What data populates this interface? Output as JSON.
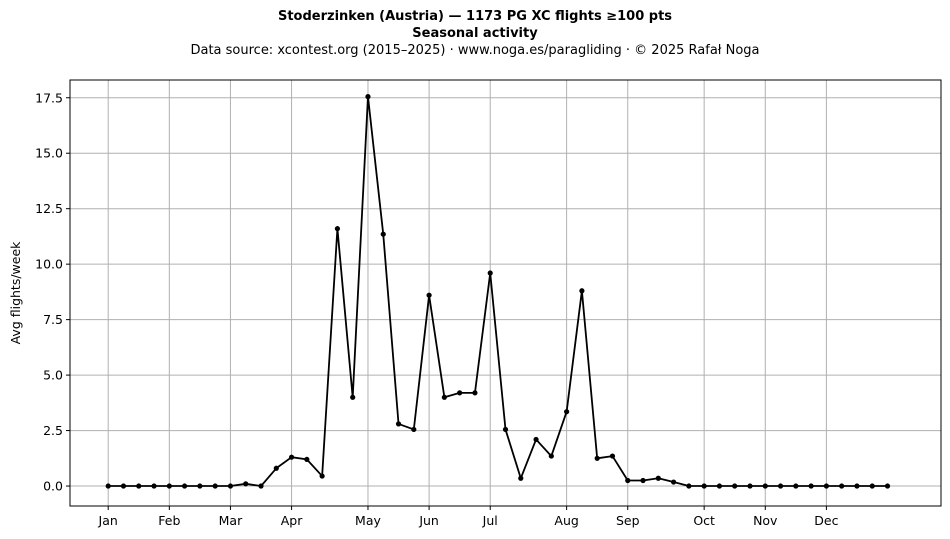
{
  "chart_data": {
    "type": "line",
    "title": "Stoderzinken (Austria)  —  1173 PG XC flights ≥100 pts",
    "subtitle": "Seasonal activity",
    "source": "Data source: xcontest.org (2015–2025)  ·  www.noga.es/paragliding  ·  © 2025 Rafał Noga",
    "xlabel": "",
    "ylabel": "Avg flights/week",
    "ylim": [
      -0.9,
      18.3
    ],
    "xlim": [
      -2.5,
      54.5
    ],
    "grid": true,
    "month_ticks": [
      {
        "label": "Jan",
        "week": 0
      },
      {
        "label": "Feb",
        "week": 4
      },
      {
        "label": "Mar",
        "week": 8
      },
      {
        "label": "Apr",
        "week": 12
      },
      {
        "label": "May",
        "week": 17
      },
      {
        "label": "Jun",
        "week": 21
      },
      {
        "label": "Jul",
        "week": 25
      },
      {
        "label": "Aug",
        "week": 30
      },
      {
        "label": "Sep",
        "week": 34
      },
      {
        "label": "Oct",
        "week": 39
      },
      {
        "label": "Nov",
        "week": 43
      },
      {
        "label": "Dec",
        "week": 47
      }
    ],
    "y_ticks": [
      0,
      2.5,
      5,
      7.5,
      10,
      12.5,
      15,
      17.5
    ],
    "y_tick_labels": [
      "0.0",
      "2.5",
      "5.0",
      "7.5",
      "10.0",
      "12.5",
      "15.0",
      "17.5"
    ],
    "x": [
      0,
      1,
      2,
      3,
      4,
      5,
      6,
      7,
      8,
      9,
      10,
      11,
      12,
      13,
      14,
      15,
      16,
      17,
      18,
      19,
      20,
      21,
      22,
      23,
      24,
      25,
      26,
      27,
      28,
      29,
      30,
      31,
      32,
      33,
      34,
      35,
      36,
      37,
      38,
      39,
      40,
      41,
      42,
      43,
      44,
      45,
      46,
      47,
      48,
      49,
      50,
      51
    ],
    "values": [
      0,
      0,
      0,
      0,
      0,
      0,
      0,
      0,
      0,
      0.1,
      0,
      0.8,
      1.3,
      1.2,
      0.45,
      11.6,
      4.0,
      17.55,
      11.35,
      2.8,
      2.55,
      8.6,
      4.0,
      4.2,
      4.2,
      9.6,
      2.55,
      0.35,
      2.1,
      1.35,
      3.35,
      8.8,
      1.25,
      1.35,
      0.25,
      0.25,
      0.35,
      0.18,
      0,
      0,
      0,
      0,
      0,
      0,
      0,
      0,
      0,
      0,
      0,
      0,
      0,
      0
    ],
    "line_color": "#000000",
    "grid_color": "#b0b0b0"
  }
}
